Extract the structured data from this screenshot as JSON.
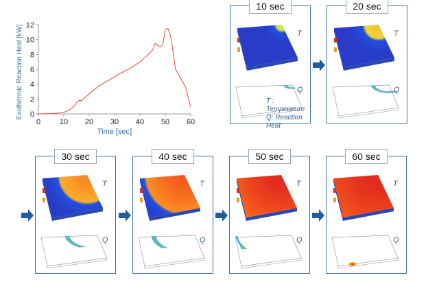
{
  "chart_data": {
    "type": "line",
    "xlabel": "Time [sec]",
    "ylabel": "Exothermic Reaction Heat [kW]",
    "xlim": [
      0,
      60
    ],
    "ylim": [
      0,
      12
    ],
    "xticks": [
      0,
      10,
      20,
      30,
      40,
      50,
      60
    ],
    "yticks": [
      0,
      2,
      4,
      6,
      8,
      10,
      12
    ],
    "grid": false,
    "line_color": "#e8483c",
    "axis_label_color": "#2f6fa6",
    "x": [
      0,
      5,
      8,
      10,
      12,
      14,
      15,
      16,
      17,
      20,
      24,
      28,
      32,
      36,
      40,
      43,
      45,
      46,
      47,
      48,
      49,
      50,
      51,
      52,
      53,
      54,
      56,
      58,
      59,
      60
    ],
    "y": [
      0,
      0.05,
      0.1,
      0.2,
      0.5,
      1.0,
      1.5,
      1.8,
      1.8,
      2.7,
      3.8,
      4.6,
      5.4,
      6.1,
      7.0,
      7.9,
      8.6,
      9.5,
      9.2,
      9.0,
      9.3,
      11.3,
      11.5,
      10.6,
      8.5,
      6.0,
      4.8,
      3.6,
      2.2,
      1.0
    ]
  },
  "colors": {
    "panel_border": "#3c6e9c",
    "arrow": "#1f5fa0",
    "label_text": "#2f5d8a"
  },
  "snapshots": [
    {
      "time_label": "10 sec",
      "front": 0.1
    },
    {
      "time_label": "20 sec",
      "front": 0.23
    },
    {
      "time_label": "30 sec",
      "front": 0.44
    },
    {
      "time_label": "40 sec",
      "front": 0.6
    },
    {
      "time_label": "50 sec",
      "front": 0.82
    },
    {
      "time_label": "60 sec",
      "front": 1.0
    }
  ],
  "plate_labels": {
    "temperature": "T",
    "heat": "Q"
  },
  "legend": {
    "line1": "T : Temperature",
    "line2": "Q: Reaction Heat"
  }
}
